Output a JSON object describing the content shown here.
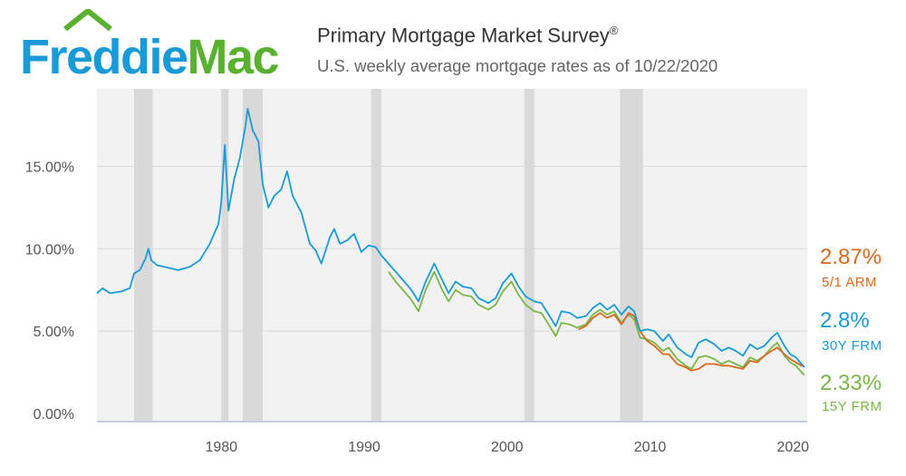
{
  "header": {
    "logo_text": "FreddieMac",
    "logo_part1": "Freddie",
    "logo_part2": "Mac",
    "title": "Primary Mortgage Market Survey",
    "title_mark": "®",
    "subtitle": "U.S. weekly average mortgage rates as of 10/22/2020"
  },
  "colors": {
    "frm30": "#1a9bd7",
    "frm15": "#7ab648",
    "arm51": "#d86a1f",
    "recession": "#d9d9d9",
    "plot_bg": "#f2f2f2",
    "logo_blue": "#1a9bd7",
    "logo_green": "#5ab031"
  },
  "chart_data": {
    "type": "line",
    "title": "Primary Mortgage Market Survey®",
    "subtitle": "U.S. weekly average mortgage rates as of 10/22/2020",
    "xlim": [
      1971.3,
      2021.0
    ],
    "ylim": [
      0,
      18.9
    ],
    "x_ticks": [
      1980,
      1990,
      2000,
      2010,
      2020
    ],
    "x_tick_labels": [
      "1980",
      "1990",
      "2000",
      "2010",
      "2020"
    ],
    "y_ticks": [
      0,
      5,
      10,
      15
    ],
    "y_tick_labels": [
      "0.00%",
      "5.00%",
      "10.00%",
      "15.00%"
    ],
    "grid": "horizontal",
    "recessions": [
      [
        1973.9,
        1975.2
      ],
      [
        1980.0,
        1980.5
      ],
      [
        1981.5,
        1982.9
      ],
      [
        1990.5,
        1991.2
      ],
      [
        2001.2,
        2001.9
      ],
      [
        2007.9,
        2009.5
      ]
    ],
    "series": [
      {
        "name": "30Y FRM",
        "color_key": "frm30",
        "end_label": "2.8%",
        "points": [
          [
            1971.3,
            7.3
          ],
          [
            1971.7,
            7.6
          ],
          [
            1972.2,
            7.3
          ],
          [
            1973.0,
            7.4
          ],
          [
            1973.6,
            7.6
          ],
          [
            1973.9,
            8.5
          ],
          [
            1974.3,
            8.7
          ],
          [
            1974.7,
            9.4
          ],
          [
            1974.9,
            10.0
          ],
          [
            1975.1,
            9.3
          ],
          [
            1975.5,
            9.0
          ],
          [
            1976.0,
            8.9
          ],
          [
            1977.0,
            8.7
          ],
          [
            1977.8,
            8.9
          ],
          [
            1978.5,
            9.3
          ],
          [
            1979.2,
            10.3
          ],
          [
            1979.8,
            11.5
          ],
          [
            1980.0,
            12.8
          ],
          [
            1980.25,
            16.3
          ],
          [
            1980.5,
            12.3
          ],
          [
            1980.9,
            14.2
          ],
          [
            1981.3,
            15.5
          ],
          [
            1981.7,
            17.5
          ],
          [
            1981.85,
            18.5
          ],
          [
            1982.2,
            17.2
          ],
          [
            1982.6,
            16.5
          ],
          [
            1982.9,
            13.9
          ],
          [
            1983.3,
            12.5
          ],
          [
            1983.7,
            13.2
          ],
          [
            1984.2,
            13.6
          ],
          [
            1984.6,
            14.7
          ],
          [
            1985.0,
            13.2
          ],
          [
            1985.6,
            12.2
          ],
          [
            1986.2,
            10.3
          ],
          [
            1986.6,
            9.9
          ],
          [
            1987.0,
            9.1
          ],
          [
            1987.6,
            10.7
          ],
          [
            1987.9,
            11.2
          ],
          [
            1988.3,
            10.3
          ],
          [
            1988.8,
            10.5
          ],
          [
            1989.3,
            10.9
          ],
          [
            1989.8,
            9.8
          ],
          [
            1990.3,
            10.2
          ],
          [
            1990.8,
            10.1
          ],
          [
            1991.2,
            9.6
          ],
          [
            1991.8,
            9.0
          ],
          [
            1992.2,
            8.6
          ],
          [
            1992.8,
            8.0
          ],
          [
            1993.3,
            7.5
          ],
          [
            1993.8,
            6.8
          ],
          [
            1994.3,
            8.0
          ],
          [
            1994.9,
            9.1
          ],
          [
            1995.4,
            8.2
          ],
          [
            1995.9,
            7.3
          ],
          [
            1996.4,
            8.0
          ],
          [
            1996.9,
            7.7
          ],
          [
            1997.5,
            7.6
          ],
          [
            1998.0,
            7.0
          ],
          [
            1998.7,
            6.7
          ],
          [
            1999.2,
            7.0
          ],
          [
            1999.7,
            7.9
          ],
          [
            2000.3,
            8.5
          ],
          [
            2000.8,
            7.7
          ],
          [
            2001.3,
            7.1
          ],
          [
            2001.9,
            6.8
          ],
          [
            2002.4,
            6.7
          ],
          [
            2002.9,
            6.0
          ],
          [
            2003.4,
            5.3
          ],
          [
            2003.8,
            6.2
          ],
          [
            2004.4,
            6.1
          ],
          [
            2004.9,
            5.8
          ],
          [
            2005.5,
            5.9
          ],
          [
            2006.0,
            6.4
          ],
          [
            2006.5,
            6.7
          ],
          [
            2007.0,
            6.3
          ],
          [
            2007.5,
            6.6
          ],
          [
            2008.0,
            6.0
          ],
          [
            2008.5,
            6.5
          ],
          [
            2008.9,
            6.2
          ],
          [
            2009.3,
            5.0
          ],
          [
            2009.8,
            5.1
          ],
          [
            2010.3,
            5.0
          ],
          [
            2010.9,
            4.4
          ],
          [
            2011.3,
            4.8
          ],
          [
            2011.9,
            4.0
          ],
          [
            2012.5,
            3.6
          ],
          [
            2012.9,
            3.4
          ],
          [
            2013.4,
            4.3
          ],
          [
            2013.9,
            4.5
          ],
          [
            2014.5,
            4.2
          ],
          [
            2015.0,
            3.8
          ],
          [
            2015.5,
            4.0
          ],
          [
            2016.0,
            3.8
          ],
          [
            2016.5,
            3.5
          ],
          [
            2017.0,
            4.2
          ],
          [
            2017.5,
            3.9
          ],
          [
            2018.0,
            4.1
          ],
          [
            2018.5,
            4.6
          ],
          [
            2018.9,
            4.9
          ],
          [
            2019.4,
            4.1
          ],
          [
            2019.8,
            3.6
          ],
          [
            2020.2,
            3.4
          ],
          [
            2020.6,
            3.0
          ],
          [
            2020.8,
            2.8
          ]
        ]
      },
      {
        "name": "15Y FRM",
        "color_key": "frm15",
        "end_label": "2.33%",
        "points": [
          [
            1991.7,
            8.6
          ],
          [
            1992.2,
            8.0
          ],
          [
            1992.8,
            7.4
          ],
          [
            1993.3,
            6.9
          ],
          [
            1993.8,
            6.2
          ],
          [
            1994.3,
            7.5
          ],
          [
            1994.9,
            8.6
          ],
          [
            1995.4,
            7.6
          ],
          [
            1995.9,
            6.8
          ],
          [
            1996.4,
            7.5
          ],
          [
            1996.9,
            7.2
          ],
          [
            1997.5,
            7.1
          ],
          [
            1998.0,
            6.6
          ],
          [
            1998.7,
            6.3
          ],
          [
            1999.2,
            6.6
          ],
          [
            1999.7,
            7.4
          ],
          [
            2000.3,
            8.0
          ],
          [
            2000.8,
            7.2
          ],
          [
            2001.3,
            6.6
          ],
          [
            2001.9,
            6.2
          ],
          [
            2002.4,
            6.1
          ],
          [
            2002.9,
            5.4
          ],
          [
            2003.4,
            4.7
          ],
          [
            2003.8,
            5.5
          ],
          [
            2004.4,
            5.4
          ],
          [
            2004.9,
            5.2
          ],
          [
            2005.5,
            5.4
          ],
          [
            2006.0,
            6.0
          ],
          [
            2006.5,
            6.3
          ],
          [
            2007.0,
            6.0
          ],
          [
            2007.5,
            6.2
          ],
          [
            2008.0,
            5.5
          ],
          [
            2008.5,
            6.0
          ],
          [
            2008.9,
            5.7
          ],
          [
            2009.3,
            4.6
          ],
          [
            2009.8,
            4.5
          ],
          [
            2010.3,
            4.3
          ],
          [
            2010.9,
            3.8
          ],
          [
            2011.3,
            4.0
          ],
          [
            2011.9,
            3.3
          ],
          [
            2012.5,
            2.9
          ],
          [
            2012.9,
            2.7
          ],
          [
            2013.4,
            3.4
          ],
          [
            2013.9,
            3.5
          ],
          [
            2014.5,
            3.3
          ],
          [
            2015.0,
            3.0
          ],
          [
            2015.5,
            3.2
          ],
          [
            2016.0,
            3.0
          ],
          [
            2016.5,
            2.8
          ],
          [
            2017.0,
            3.4
          ],
          [
            2017.5,
            3.2
          ],
          [
            2018.0,
            3.5
          ],
          [
            2018.5,
            4.0
          ],
          [
            2018.9,
            4.3
          ],
          [
            2019.4,
            3.5
          ],
          [
            2019.8,
            3.1
          ],
          [
            2020.2,
            2.9
          ],
          [
            2020.6,
            2.5
          ],
          [
            2020.8,
            2.33
          ]
        ]
      },
      {
        "name": "5/1 ARM",
        "color_key": "arm51",
        "end_label": "2.87%",
        "points": [
          [
            2005.0,
            5.1
          ],
          [
            2005.5,
            5.3
          ],
          [
            2006.0,
            5.8
          ],
          [
            2006.5,
            6.1
          ],
          [
            2007.0,
            5.8
          ],
          [
            2007.5,
            6.0
          ],
          [
            2008.0,
            5.4
          ],
          [
            2008.5,
            6.1
          ],
          [
            2008.9,
            5.9
          ],
          [
            2009.3,
            5.0
          ],
          [
            2009.8,
            4.4
          ],
          [
            2010.3,
            4.1
          ],
          [
            2010.9,
            3.6
          ],
          [
            2011.3,
            3.6
          ],
          [
            2011.9,
            3.0
          ],
          [
            2012.5,
            2.8
          ],
          [
            2012.9,
            2.6
          ],
          [
            2013.4,
            2.7
          ],
          [
            2013.9,
            3.0
          ],
          [
            2014.5,
            3.0
          ],
          [
            2015.0,
            2.9
          ],
          [
            2015.5,
            2.9
          ],
          [
            2016.0,
            2.8
          ],
          [
            2016.5,
            2.7
          ],
          [
            2017.0,
            3.2
          ],
          [
            2017.5,
            3.1
          ],
          [
            2018.0,
            3.5
          ],
          [
            2018.5,
            3.8
          ],
          [
            2018.9,
            4.0
          ],
          [
            2019.4,
            3.6
          ],
          [
            2019.8,
            3.3
          ],
          [
            2020.2,
            3.1
          ],
          [
            2020.6,
            2.9
          ],
          [
            2020.8,
            2.87
          ]
        ]
      }
    ],
    "end_labels": [
      {
        "value": "2.87%",
        "name": "5/1 ARM",
        "color_key": "arm51"
      },
      {
        "value": "2.8%",
        "name": "30Y FRM",
        "color_key": "frm30"
      },
      {
        "value": "2.33%",
        "name": "15Y FRM",
        "color_key": "frm15"
      }
    ]
  }
}
